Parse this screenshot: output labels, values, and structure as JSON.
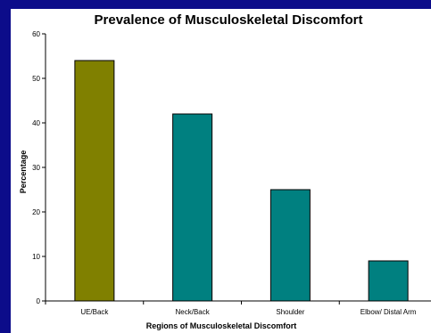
{
  "chart_data": {
    "type": "bar",
    "title": "Prevalence of Musculoskeletal Discomfort",
    "xlabel": "Regions of Musculoskeletal Discomfort",
    "ylabel": "Percentage",
    "categories": [
      "UE/Back",
      "Neck/Back",
      "Shoulder",
      "Elbow/ Distal Arm"
    ],
    "values": [
      54,
      42,
      25,
      9
    ],
    "ylim": [
      0,
      60
    ],
    "yticks": [
      0,
      10,
      20,
      30,
      40,
      50,
      60
    ],
    "grid": false,
    "legend": "none",
    "colors": [
      "#808000",
      "#008080",
      "#008080",
      "#008080"
    ]
  },
  "colors": {
    "background": "#0c0c8a",
    "plot_area": "#ffffff"
  }
}
